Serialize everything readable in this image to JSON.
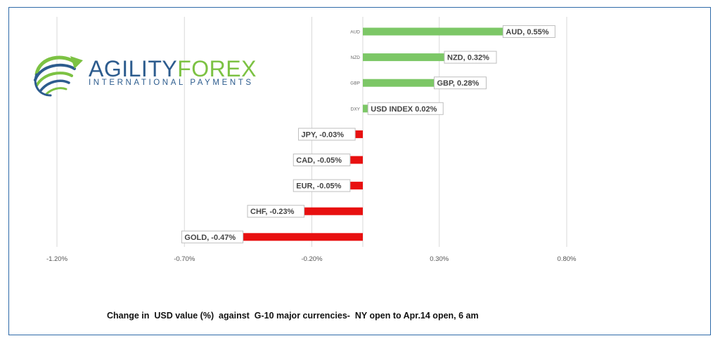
{
  "logo": {
    "brand_part1": "AGILITY",
    "brand_part2": "FOREX",
    "tagline": "INTERNATIONAL PAYMENTS",
    "icon": "swirl-arrow-icon",
    "colors": {
      "blue": "#2d5c8e",
      "green": "#7cc243"
    }
  },
  "chart_data": {
    "type": "bar",
    "orientation": "horizontal",
    "caption": "Change in  USD value (%)  against  G-10 major currencies-  NY open to Apr.14 open, 6 am",
    "categories": [
      "AUD",
      "NZD",
      "GBP",
      "DXY",
      "JPY",
      "CAD",
      "EUR",
      "CHF",
      "GOLD"
    ],
    "values": [
      0.55,
      0.32,
      0.28,
      0.02,
      -0.03,
      -0.05,
      -0.05,
      -0.23,
      -0.47
    ],
    "data_labels": [
      "AUD, 0.55%",
      "NZD, 0.32%",
      "GBP, 0.28%",
      "USD INDEX 0.02%",
      "JPY, -0.03%",
      "CAD, -0.05%",
      "EUR, -0.05%",
      "CHF, -0.23%",
      "GOLD, -0.47%"
    ],
    "category_labels_shown": [
      "AUD",
      "NZD",
      "GBP",
      "DXY"
    ],
    "xlim": [
      -1.2,
      1.0
    ],
    "x_ticks": [
      -1.2,
      -0.7,
      -0.2,
      0.3,
      0.8
    ],
    "x_tick_labels": [
      "-1.20%",
      "-0.70%",
      "-0.20%",
      "0.30%",
      "0.80%"
    ],
    "grid": "vertical",
    "colors": {
      "positive": "#7cc766",
      "negative": "#e81010"
    }
  }
}
